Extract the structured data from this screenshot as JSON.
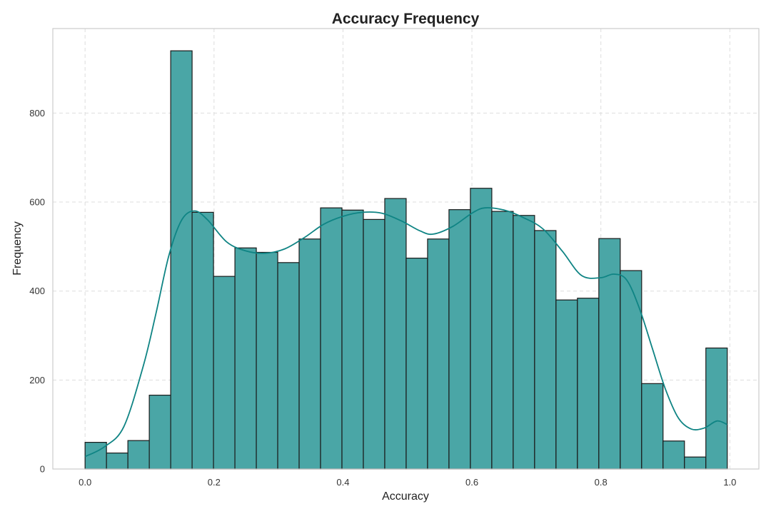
{
  "chart_data": {
    "type": "bar",
    "subtype": "histogram",
    "title": "Accuracy Frequency",
    "xlabel": "Accuracy",
    "ylabel": "Frequency",
    "xlim": [
      -0.05,
      1.045
    ],
    "ylim": [
      0,
      990
    ],
    "xticks": [
      "0.0",
      "0.2",
      "0.4",
      "0.6",
      "0.8",
      "1.0"
    ],
    "yticks": [
      "0",
      "200",
      "400",
      "600",
      "800"
    ],
    "grid": true,
    "bin_edges": [
      0.0,
      0.0332,
      0.0664,
      0.0996,
      0.1328,
      0.166,
      0.1992,
      0.2324,
      0.2656,
      0.2988,
      0.332,
      0.3652,
      0.3984,
      0.4316,
      0.4648,
      0.498,
      0.5312,
      0.5644,
      0.5976,
      0.6308,
      0.664,
      0.6972,
      0.7304,
      0.7636,
      0.7968,
      0.83,
      0.8632,
      0.8964,
      0.9296,
      0.9628,
      0.996
    ],
    "values": [
      60,
      36,
      64,
      166,
      940,
      577,
      433,
      497,
      487,
      464,
      517,
      587,
      582,
      561,
      608,
      474,
      517,
      583,
      631,
      579,
      570,
      536,
      380,
      384,
      518,
      446,
      192,
      63,
      27,
      272
    ],
    "kde": {
      "x": [
        0.0,
        0.03,
        0.06,
        0.09,
        0.11,
        0.13,
        0.15,
        0.17,
        0.19,
        0.22,
        0.25,
        0.28,
        0.31,
        0.34,
        0.37,
        0.4,
        0.43,
        0.46,
        0.49,
        0.52,
        0.54,
        0.57,
        0.6,
        0.62,
        0.65,
        0.68,
        0.71,
        0.74,
        0.77,
        0.8,
        0.82,
        0.84,
        0.86,
        0.88,
        0.9,
        0.92,
        0.94,
        0.96,
        0.98,
        0.996
      ],
      "y": [
        28,
        50,
        95,
        230,
        350,
        480,
        560,
        580,
        560,
        510,
        490,
        485,
        495,
        520,
        550,
        568,
        577,
        575,
        558,
        535,
        528,
        545,
        575,
        587,
        582,
        565,
        540,
        490,
        435,
        430,
        438,
        425,
        360,
        270,
        180,
        115,
        90,
        92,
        108,
        100
      ]
    },
    "colors": {
      "bar_fill": "#4aa6a6",
      "bar_edge": "#1a1a1a",
      "kde_line": "#0f8484",
      "grid": "#dddddd",
      "frame": "#cccccc"
    }
  }
}
